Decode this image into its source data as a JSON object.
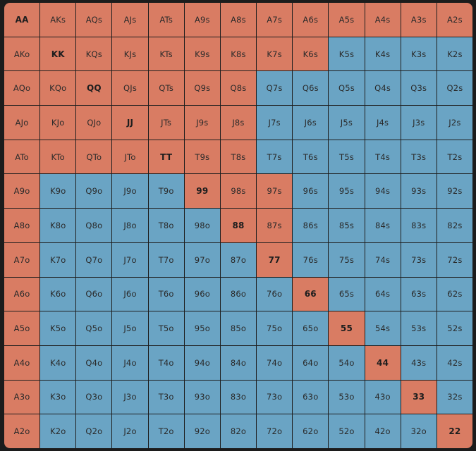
{
  "colors": {
    "raise": "#d97c63",
    "fold": "#6aa4c4",
    "background": "#1c1c1c"
  },
  "ranks": [
    "A",
    "K",
    "Q",
    "J",
    "T",
    "9",
    "8",
    "7",
    "6",
    "5",
    "4",
    "3",
    "2"
  ],
  "grid": [
    [
      {
        "label": "AA",
        "action": "raise"
      },
      {
        "label": "AKs",
        "action": "raise"
      },
      {
        "label": "AQs",
        "action": "raise"
      },
      {
        "label": "AJs",
        "action": "raise"
      },
      {
        "label": "ATs",
        "action": "raise"
      },
      {
        "label": "A9s",
        "action": "raise"
      },
      {
        "label": "A8s",
        "action": "raise"
      },
      {
        "label": "A7s",
        "action": "raise"
      },
      {
        "label": "A6s",
        "action": "raise"
      },
      {
        "label": "A5s",
        "action": "raise"
      },
      {
        "label": "A4s",
        "action": "raise"
      },
      {
        "label": "A3s",
        "action": "raise"
      },
      {
        "label": "A2s",
        "action": "raise"
      }
    ],
    [
      {
        "label": "AKo",
        "action": "raise"
      },
      {
        "label": "KK",
        "action": "raise"
      },
      {
        "label": "KQs",
        "action": "raise"
      },
      {
        "label": "KJs",
        "action": "raise"
      },
      {
        "label": "KTs",
        "action": "raise"
      },
      {
        "label": "K9s",
        "action": "raise"
      },
      {
        "label": "K8s",
        "action": "raise"
      },
      {
        "label": "K7s",
        "action": "raise"
      },
      {
        "label": "K6s",
        "action": "raise"
      },
      {
        "label": "K5s",
        "action": "fold"
      },
      {
        "label": "K4s",
        "action": "fold"
      },
      {
        "label": "K3s",
        "action": "fold"
      },
      {
        "label": "K2s",
        "action": "fold"
      }
    ],
    [
      {
        "label": "AQo",
        "action": "raise"
      },
      {
        "label": "KQo",
        "action": "raise"
      },
      {
        "label": "QQ",
        "action": "raise"
      },
      {
        "label": "QJs",
        "action": "raise"
      },
      {
        "label": "QTs",
        "action": "raise"
      },
      {
        "label": "Q9s",
        "action": "raise"
      },
      {
        "label": "Q8s",
        "action": "raise"
      },
      {
        "label": "Q7s",
        "action": "fold"
      },
      {
        "label": "Q6s",
        "action": "fold"
      },
      {
        "label": "Q5s",
        "action": "fold"
      },
      {
        "label": "Q4s",
        "action": "fold"
      },
      {
        "label": "Q3s",
        "action": "fold"
      },
      {
        "label": "Q2s",
        "action": "fold"
      }
    ],
    [
      {
        "label": "AJo",
        "action": "raise"
      },
      {
        "label": "KJo",
        "action": "raise"
      },
      {
        "label": "QJo",
        "action": "raise"
      },
      {
        "label": "JJ",
        "action": "raise"
      },
      {
        "label": "JTs",
        "action": "raise"
      },
      {
        "label": "J9s",
        "action": "raise"
      },
      {
        "label": "J8s",
        "action": "raise"
      },
      {
        "label": "J7s",
        "action": "fold"
      },
      {
        "label": "J6s",
        "action": "fold"
      },
      {
        "label": "J5s",
        "action": "fold"
      },
      {
        "label": "J4s",
        "action": "fold"
      },
      {
        "label": "J3s",
        "action": "fold"
      },
      {
        "label": "J2s",
        "action": "fold"
      }
    ],
    [
      {
        "label": "ATo",
        "action": "raise"
      },
      {
        "label": "KTo",
        "action": "raise"
      },
      {
        "label": "QTo",
        "action": "raise"
      },
      {
        "label": "JTo",
        "action": "raise"
      },
      {
        "label": "TT",
        "action": "raise"
      },
      {
        "label": "T9s",
        "action": "raise"
      },
      {
        "label": "T8s",
        "action": "raise"
      },
      {
        "label": "T7s",
        "action": "fold"
      },
      {
        "label": "T6s",
        "action": "fold"
      },
      {
        "label": "T5s",
        "action": "fold"
      },
      {
        "label": "T4s",
        "action": "fold"
      },
      {
        "label": "T3s",
        "action": "fold"
      },
      {
        "label": "T2s",
        "action": "fold"
      }
    ],
    [
      {
        "label": "A9o",
        "action": "raise"
      },
      {
        "label": "K9o",
        "action": "fold"
      },
      {
        "label": "Q9o",
        "action": "fold"
      },
      {
        "label": "J9o",
        "action": "fold"
      },
      {
        "label": "T9o",
        "action": "fold"
      },
      {
        "label": "99",
        "action": "raise"
      },
      {
        "label": "98s",
        "action": "raise"
      },
      {
        "label": "97s",
        "action": "raise"
      },
      {
        "label": "96s",
        "action": "fold"
      },
      {
        "label": "95s",
        "action": "fold"
      },
      {
        "label": "94s",
        "action": "fold"
      },
      {
        "label": "93s",
        "action": "fold"
      },
      {
        "label": "92s",
        "action": "fold"
      }
    ],
    [
      {
        "label": "A8o",
        "action": "raise"
      },
      {
        "label": "K8o",
        "action": "fold"
      },
      {
        "label": "Q8o",
        "action": "fold"
      },
      {
        "label": "J8o",
        "action": "fold"
      },
      {
        "label": "T8o",
        "action": "fold"
      },
      {
        "label": "98o",
        "action": "fold"
      },
      {
        "label": "88",
        "action": "raise"
      },
      {
        "label": "87s",
        "action": "raise"
      },
      {
        "label": "86s",
        "action": "fold"
      },
      {
        "label": "85s",
        "action": "fold"
      },
      {
        "label": "84s",
        "action": "fold"
      },
      {
        "label": "83s",
        "action": "fold"
      },
      {
        "label": "82s",
        "action": "fold"
      }
    ],
    [
      {
        "label": "A7o",
        "action": "raise"
      },
      {
        "label": "K7o",
        "action": "fold"
      },
      {
        "label": "Q7o",
        "action": "fold"
      },
      {
        "label": "J7o",
        "action": "fold"
      },
      {
        "label": "T7o",
        "action": "fold"
      },
      {
        "label": "97o",
        "action": "fold"
      },
      {
        "label": "87o",
        "action": "fold"
      },
      {
        "label": "77",
        "action": "raise"
      },
      {
        "label": "76s",
        "action": "fold"
      },
      {
        "label": "75s",
        "action": "fold"
      },
      {
        "label": "74s",
        "action": "fold"
      },
      {
        "label": "73s",
        "action": "fold"
      },
      {
        "label": "72s",
        "action": "fold"
      }
    ],
    [
      {
        "label": "A6o",
        "action": "raise"
      },
      {
        "label": "K6o",
        "action": "fold"
      },
      {
        "label": "Q6o",
        "action": "fold"
      },
      {
        "label": "J6o",
        "action": "fold"
      },
      {
        "label": "T6o",
        "action": "fold"
      },
      {
        "label": "96o",
        "action": "fold"
      },
      {
        "label": "86o",
        "action": "fold"
      },
      {
        "label": "76o",
        "action": "fold"
      },
      {
        "label": "66",
        "action": "raise"
      },
      {
        "label": "65s",
        "action": "fold"
      },
      {
        "label": "64s",
        "action": "fold"
      },
      {
        "label": "63s",
        "action": "fold"
      },
      {
        "label": "62s",
        "action": "fold"
      }
    ],
    [
      {
        "label": "A5o",
        "action": "raise"
      },
      {
        "label": "K5o",
        "action": "fold"
      },
      {
        "label": "Q5o",
        "action": "fold"
      },
      {
        "label": "J5o",
        "action": "fold"
      },
      {
        "label": "T5o",
        "action": "fold"
      },
      {
        "label": "95o",
        "action": "fold"
      },
      {
        "label": "85o",
        "action": "fold"
      },
      {
        "label": "75o",
        "action": "fold"
      },
      {
        "label": "65o",
        "action": "fold"
      },
      {
        "label": "55",
        "action": "raise"
      },
      {
        "label": "54s",
        "action": "fold"
      },
      {
        "label": "53s",
        "action": "fold"
      },
      {
        "label": "52s",
        "action": "fold"
      }
    ],
    [
      {
        "label": "A4o",
        "action": "raise"
      },
      {
        "label": "K4o",
        "action": "fold"
      },
      {
        "label": "Q4o",
        "action": "fold"
      },
      {
        "label": "J4o",
        "action": "fold"
      },
      {
        "label": "T4o",
        "action": "fold"
      },
      {
        "label": "94o",
        "action": "fold"
      },
      {
        "label": "84o",
        "action": "fold"
      },
      {
        "label": "74o",
        "action": "fold"
      },
      {
        "label": "64o",
        "action": "fold"
      },
      {
        "label": "54o",
        "action": "fold"
      },
      {
        "label": "44",
        "action": "raise"
      },
      {
        "label": "43s",
        "action": "fold"
      },
      {
        "label": "42s",
        "action": "fold"
      }
    ],
    [
      {
        "label": "A3o",
        "action": "raise"
      },
      {
        "label": "K3o",
        "action": "fold"
      },
      {
        "label": "Q3o",
        "action": "fold"
      },
      {
        "label": "J3o",
        "action": "fold"
      },
      {
        "label": "T3o",
        "action": "fold"
      },
      {
        "label": "93o",
        "action": "fold"
      },
      {
        "label": "83o",
        "action": "fold"
      },
      {
        "label": "73o",
        "action": "fold"
      },
      {
        "label": "63o",
        "action": "fold"
      },
      {
        "label": "53o",
        "action": "fold"
      },
      {
        "label": "43o",
        "action": "fold"
      },
      {
        "label": "33",
        "action": "raise"
      },
      {
        "label": "32s",
        "action": "fold"
      }
    ],
    [
      {
        "label": "A2o",
        "action": "raise"
      },
      {
        "label": "K2o",
        "action": "fold"
      },
      {
        "label": "Q2o",
        "action": "fold"
      },
      {
        "label": "J2o",
        "action": "fold"
      },
      {
        "label": "T2o",
        "action": "fold"
      },
      {
        "label": "92o",
        "action": "fold"
      },
      {
        "label": "82o",
        "action": "fold"
      },
      {
        "label": "72o",
        "action": "fold"
      },
      {
        "label": "62o",
        "action": "fold"
      },
      {
        "label": "52o",
        "action": "fold"
      },
      {
        "label": "42o",
        "action": "fold"
      },
      {
        "label": "32o",
        "action": "fold"
      },
      {
        "label": "22",
        "action": "raise"
      }
    ]
  ]
}
